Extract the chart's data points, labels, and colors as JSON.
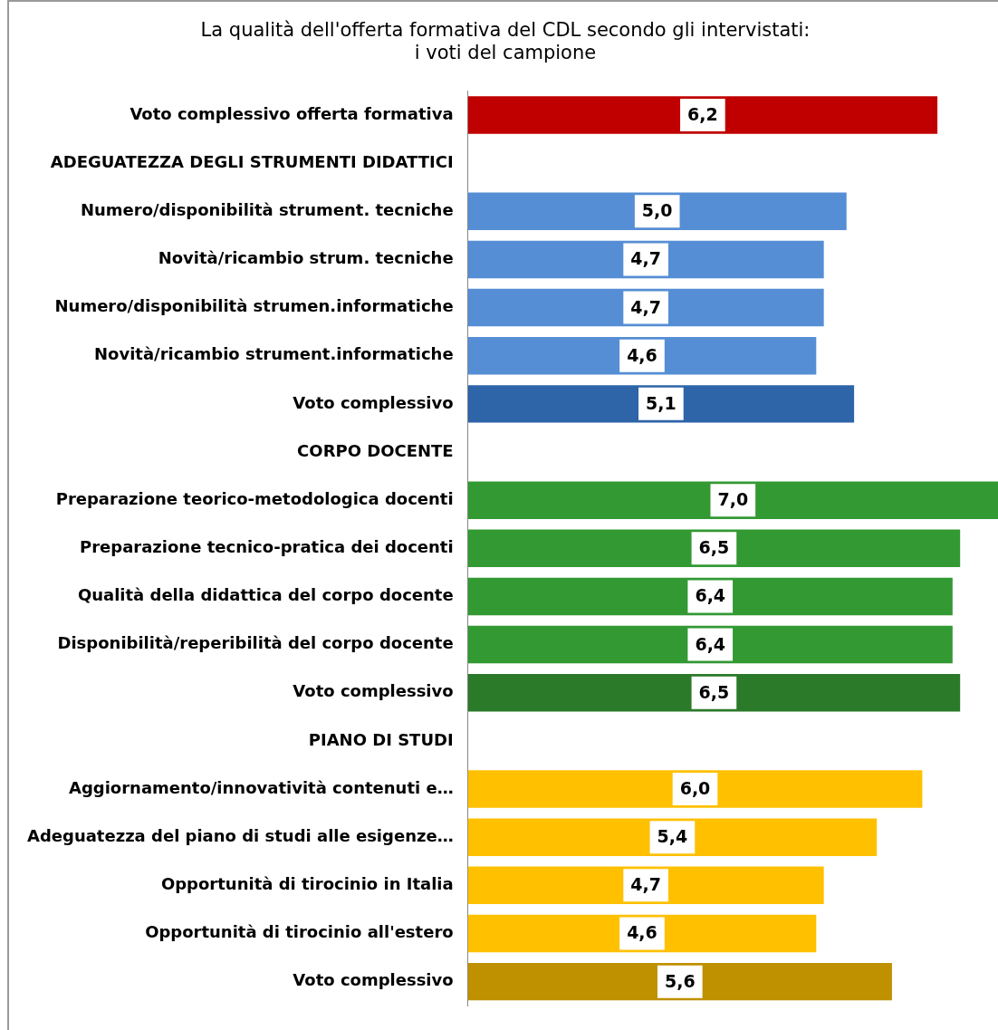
{
  "chart_data": {
    "type": "bar",
    "orientation": "horizontal",
    "tick_labels": "y",
    "legend": false,
    "title": "La qualità dell'offerta formativa del CDL secondo gli intervistati:\ni voti del campione",
    "categories": [
      "Voto complessivo offerta formativa",
      "ADEGUATEZZA DEGLI STRUMENTI DIDATTICI",
      "Numero/disponibilità strument. tecniche",
      "Novità/ricambio strum. tecniche",
      "Numero/disponibilità strumen.informatiche",
      "Novità/ricambio strument.informatiche",
      "Voto complessivo",
      "CORPO DOCENTE",
      "Preparazione teorico-metodologica docenti",
      "Preparazione tecnico-pratica dei docenti",
      "Qualità della didattica del corpo docente",
      "Disponibilità/reperibilità del corpo docente",
      "Voto complessivo",
      "PIANO DI STUDI",
      "Aggiornamento/innovatività contenuti e…",
      "Adeguatezza del piano di studi alle esigenze…",
      "Opportunità di tirocinio in Italia",
      "Opportunità di tirocinio all'estero",
      "Voto complessivo"
    ],
    "values": [
      6.2,
      null,
      5.0,
      4.7,
      4.7,
      4.6,
      5.1,
      null,
      7.0,
      6.5,
      6.4,
      6.4,
      6.5,
      null,
      6.0,
      5.4,
      4.7,
      4.6,
      5.6
    ],
    "value_labels": [
      "6,2",
      null,
      "5,0",
      "4,7",
      "4,7",
      "4,6",
      "5,1",
      null,
      "7,0",
      "6,5",
      "6,4",
      "6,4",
      "6,5",
      null,
      "6,0",
      "5,4",
      "4,7",
      "4,6",
      "5,6"
    ],
    "colors": [
      "#c00000",
      null,
      "#558ed5",
      "#558ed5",
      "#558ed5",
      "#558ed5",
      "#2e64a8",
      null,
      "#339933",
      "#339933",
      "#339933",
      "#339933",
      "#2a7a2a",
      null,
      "#ffc000",
      "#ffc000",
      "#ffc000",
      "#ffc000",
      "#bf9000"
    ]
  }
}
